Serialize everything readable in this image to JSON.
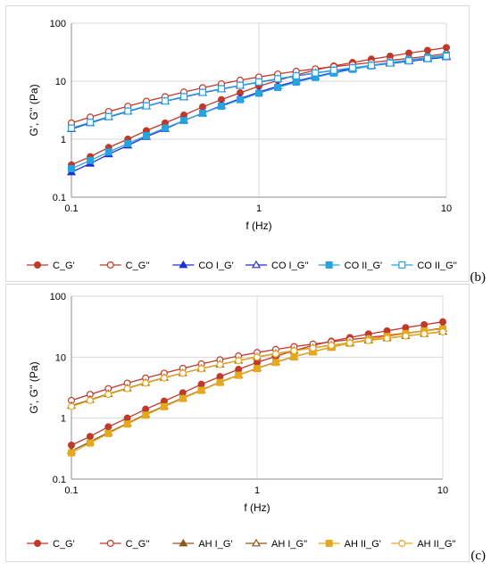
{
  "chart_data": [
    {
      "type": "line",
      "panel_label": "(b)",
      "xlabel": "f (Hz)",
      "ylabel": "G', G'' (Pa)",
      "x_scale": "log",
      "y_scale": "log",
      "xlim": [
        0.1,
        10
      ],
      "ylim": [
        0.1,
        100
      ],
      "x_ticks": [
        "0.1",
        "1",
        "10"
      ],
      "y_ticks": [
        "0.1",
        "1",
        "10",
        "100"
      ],
      "grid": "horizontal and vertical major gridlines",
      "legend_position": "bottom",
      "x": [
        0.1,
        0.126,
        0.158,
        0.2,
        0.251,
        0.316,
        0.398,
        0.501,
        0.631,
        0.794,
        1.0,
        1.26,
        1.58,
        2.0,
        2.51,
        3.16,
        3.98,
        5.01,
        6.31,
        7.94,
        10.0
      ],
      "series": [
        {
          "name": "C_G'",
          "color": "#c0392b",
          "marker": "circle-filled",
          "values": [
            0.36,
            0.5,
            0.72,
            1.0,
            1.4,
            1.9,
            2.6,
            3.6,
            4.8,
            6.3,
            8.2,
            10.3,
            12.8,
            15.5,
            18.3,
            21.0,
            24.0,
            27.0,
            30.5,
            34.0,
            38.0
          ]
        },
        {
          "name": "C_G''",
          "color": "#c0392b",
          "marker": "circle-open",
          "values": [
            1.9,
            2.4,
            3.0,
            3.7,
            4.5,
            5.4,
            6.5,
            7.7,
            9.0,
            10.4,
            11.8,
            13.3,
            14.8,
            16.3,
            17.8,
            19.3,
            21.0,
            22.8,
            24.8,
            27.0,
            30.0
          ]
        },
        {
          "name": "CO I_G'",
          "color": "#1f2fd6",
          "marker": "triangle-filled",
          "values": [
            0.27,
            0.38,
            0.55,
            0.78,
            1.1,
            1.5,
            2.1,
            2.8,
            3.8,
            5.0,
            6.5,
            8.2,
            10.0,
            12.0,
            14.2,
            16.5,
            18.8,
            21.0,
            23.0,
            25.0,
            27.0
          ]
        },
        {
          "name": "CO I_G''",
          "color": "#1f2fd6",
          "marker": "triangle-open",
          "values": [
            1.5,
            1.9,
            2.4,
            3.0,
            3.7,
            4.5,
            5.3,
            6.3,
            7.3,
            8.4,
            9.6,
            10.9,
            12.3,
            13.8,
            15.3,
            16.9,
            18.5,
            20.2,
            22.0,
            24.0,
            26.0
          ]
        },
        {
          "name": "CO II_G'",
          "color": "#29a3e0",
          "marker": "square-filled",
          "values": [
            0.31,
            0.43,
            0.6,
            0.84,
            1.15,
            1.55,
            2.1,
            2.8,
            3.7,
            4.8,
            6.2,
            7.8,
            9.6,
            11.6,
            13.8,
            16.0,
            18.4,
            20.8,
            23.2,
            25.6,
            28.0
          ]
        },
        {
          "name": "CO II_G''",
          "color": "#29a3e0",
          "marker": "square-open",
          "values": [
            1.55,
            1.95,
            2.45,
            3.05,
            3.75,
            4.55,
            5.4,
            6.4,
            7.4,
            8.5,
            9.7,
            11.0,
            12.4,
            13.9,
            15.4,
            17.0,
            18.7,
            20.5,
            22.5,
            24.7,
            27.0
          ]
        }
      ]
    },
    {
      "type": "line",
      "panel_label": "(c)",
      "xlabel": "f (Hz)",
      "ylabel": "G', G'' (Pa)",
      "x_scale": "log",
      "y_scale": "log",
      "xlim": [
        0.1,
        10
      ],
      "ylim": [
        0.1,
        100
      ],
      "x_ticks": [
        "0.1",
        "1",
        "10"
      ],
      "y_ticks": [
        "0.1",
        "1",
        "10",
        "100"
      ],
      "grid": "horizontal and vertical major gridlines",
      "legend_position": "bottom",
      "x": [
        0.1,
        0.126,
        0.158,
        0.2,
        0.251,
        0.316,
        0.398,
        0.501,
        0.631,
        0.794,
        1.0,
        1.26,
        1.58,
        2.0,
        2.51,
        3.16,
        3.98,
        5.01,
        6.31,
        7.94,
        10.0
      ],
      "series": [
        {
          "name": "C_G'",
          "color": "#c0392b",
          "marker": "circle-filled",
          "values": [
            0.36,
            0.5,
            0.72,
            1.0,
            1.4,
            1.9,
            2.6,
            3.6,
            4.8,
            6.3,
            8.2,
            10.3,
            12.8,
            15.5,
            18.3,
            21.0,
            24.0,
            27.0,
            30.5,
            34.0,
            38.0
          ]
        },
        {
          "name": "C_G''",
          "color": "#c0392b",
          "marker": "circle-open",
          "values": [
            1.95,
            2.45,
            3.05,
            3.75,
            4.55,
            5.45,
            6.55,
            7.75,
            9.05,
            10.45,
            11.9,
            13.4,
            14.9,
            16.4,
            17.9,
            19.4,
            21.0,
            22.8,
            24.8,
            27.0,
            30.0
          ]
        },
        {
          "name": "AH I_G'",
          "color": "#8b5a1a",
          "marker": "triangle-filled",
          "values": [
            0.29,
            0.41,
            0.58,
            0.82,
            1.15,
            1.58,
            2.15,
            2.9,
            3.9,
            5.1,
            6.6,
            8.3,
            10.2,
            12.3,
            14.6,
            17.0,
            19.5,
            22.0,
            24.5,
            27.0,
            29.5
          ]
        },
        {
          "name": "AH I_G''",
          "color": "#8b5a1a",
          "marker": "triangle-open",
          "values": [
            1.6,
            2.0,
            2.5,
            3.1,
            3.8,
            4.6,
            5.5,
            6.5,
            7.6,
            8.8,
            10.1,
            11.4,
            12.8,
            14.2,
            15.7,
            17.2,
            18.8,
            20.5,
            22.3,
            24.2,
            26.2
          ]
        },
        {
          "name": "AH II_G'",
          "color": "#e6a81e",
          "marker": "square-filled",
          "values": [
            0.27,
            0.39,
            0.56,
            0.8,
            1.12,
            1.54,
            2.1,
            2.85,
            3.85,
            5.05,
            6.5,
            8.2,
            10.1,
            12.2,
            14.5,
            16.9,
            19.4,
            21.9,
            24.4,
            26.9,
            29.0
          ]
        },
        {
          "name": "AH II_G''",
          "color": "#e6a81e",
          "marker": "circle-open",
          "values": [
            1.55,
            1.95,
            2.45,
            3.05,
            3.75,
            4.55,
            5.45,
            6.45,
            7.55,
            8.75,
            10.0,
            11.3,
            12.7,
            14.1,
            15.6,
            17.1,
            18.7,
            20.4,
            22.2,
            24.1,
            26.0
          ]
        }
      ]
    }
  ]
}
